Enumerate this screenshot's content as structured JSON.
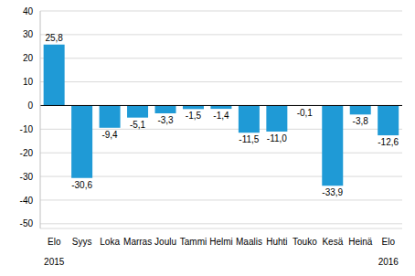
{
  "chart_data": {
    "type": "bar",
    "categories": [
      "Elo",
      "Syys",
      "Loka",
      "Marras",
      "Joulu",
      "Tammi",
      "Helmi",
      "Maalis",
      "Huhti",
      "Touko",
      "Kesä",
      "Heinä",
      "Elo"
    ],
    "years": [
      "2015",
      null,
      null,
      null,
      null,
      null,
      null,
      null,
      null,
      null,
      null,
      null,
      "2016"
    ],
    "values": [
      25.8,
      -30.6,
      -9.4,
      -5.1,
      -3.3,
      -1.5,
      -1.4,
      -11.5,
      -11.0,
      -0.1,
      -33.9,
      -3.8,
      -12.6
    ],
    "value_labels": [
      "25,8",
      "-30,6",
      "-9,4",
      "-5,1",
      "-3,3",
      "-1,5",
      "-1,4",
      "-11,5",
      "-11,0",
      "-0,1",
      "-33,9",
      "-3,8",
      "-12,6"
    ],
    "color": "#1f9ad6",
    "ylim": [
      -52,
      40
    ],
    "yticks": [
      -50,
      -40,
      -30,
      -20,
      -10,
      0,
      10,
      20,
      30,
      40
    ],
    "grid": true,
    "data_labels": true
  }
}
